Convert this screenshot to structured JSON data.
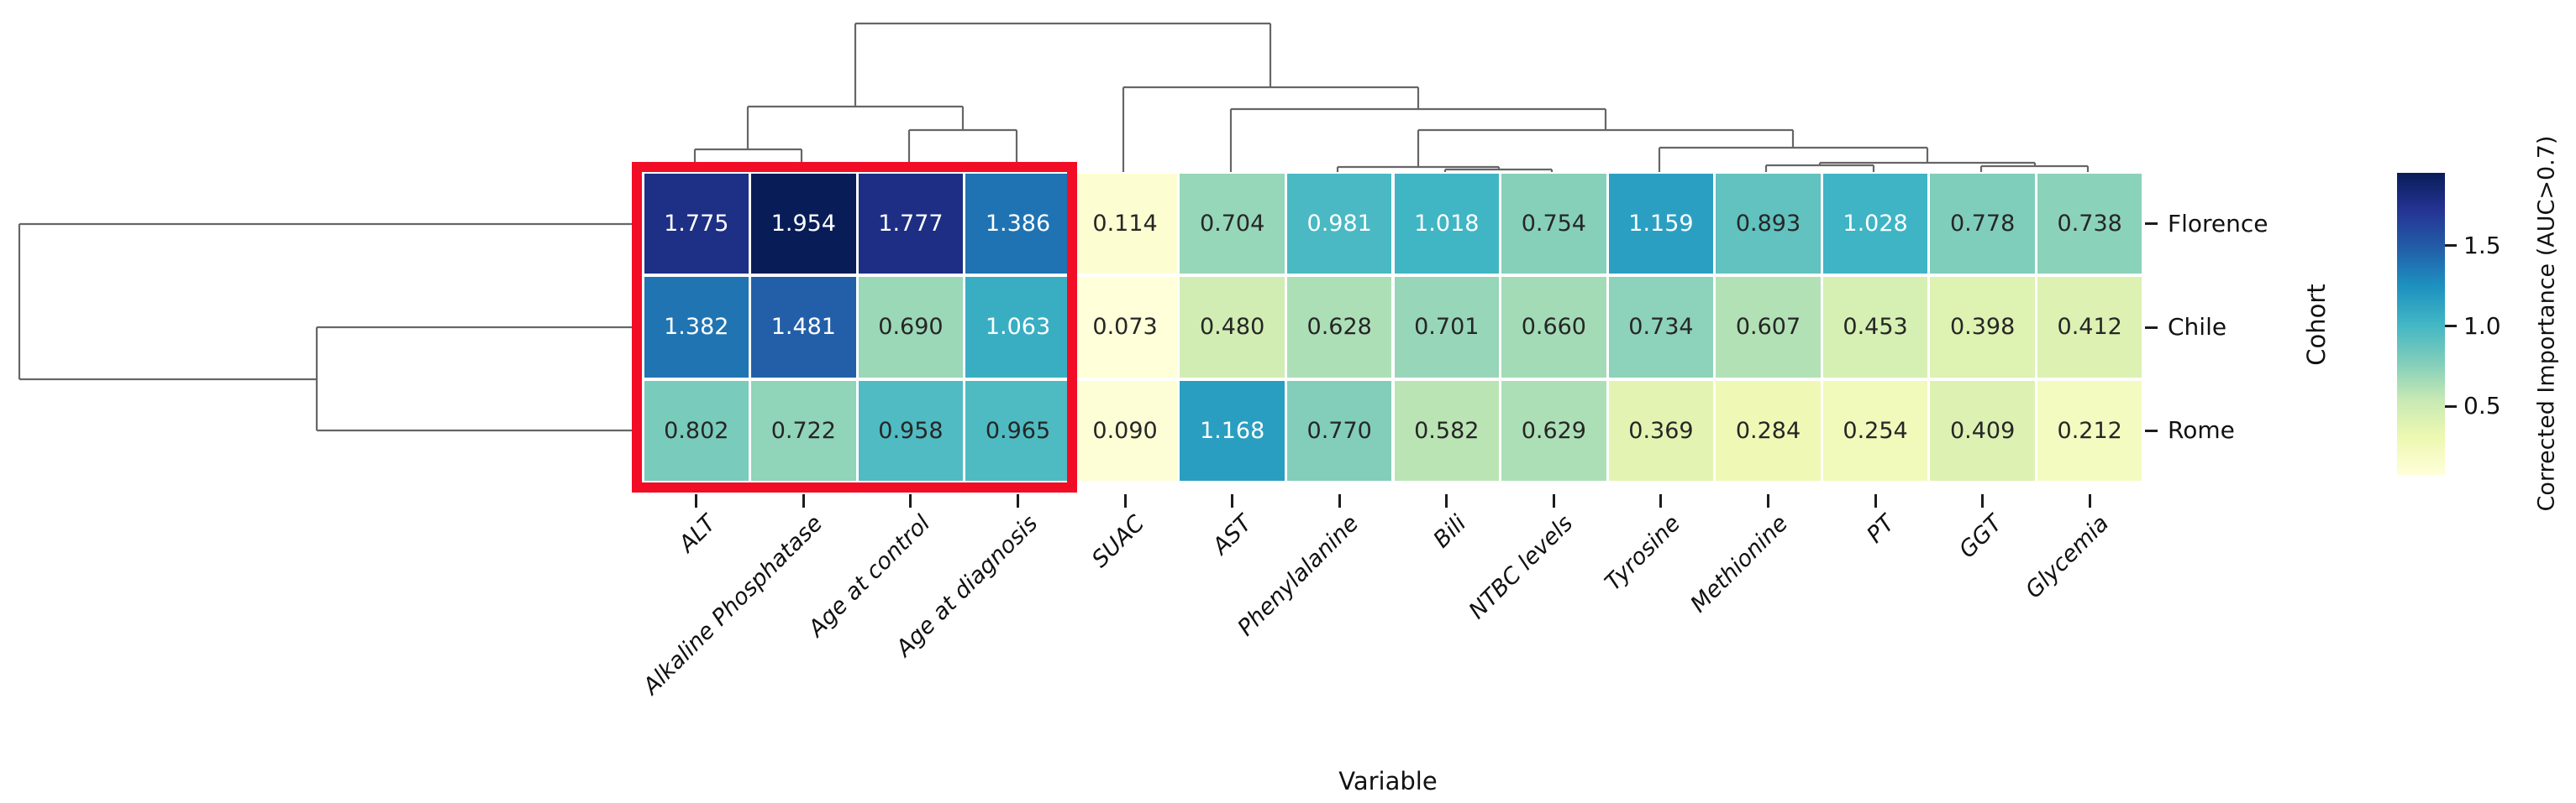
{
  "chart_data": {
    "type": "heatmap",
    "subtype": "clustermap-with-dendrograms",
    "rows": [
      "Florence",
      "Chile",
      "Rome"
    ],
    "columns": [
      "ALT",
      "Alkaline Phosphatase",
      "Age at control",
      "Age at diagnosis",
      "SUAC",
      "AST",
      "Phenylalanine",
      "Bili",
      "NTBC levels",
      "Tyrosine",
      "Methionine",
      "PT",
      "GGT",
      "Glycemia"
    ],
    "values": [
      [
        1.775,
        1.954,
        1.777,
        1.386,
        0.114,
        0.704,
        0.981,
        1.018,
        0.754,
        1.159,
        0.893,
        1.028,
        0.778,
        0.738
      ],
      [
        1.382,
        1.481,
        0.69,
        1.063,
        0.073,
        0.48,
        0.628,
        0.701,
        0.66,
        0.734,
        0.607,
        0.453,
        0.398,
        0.412
      ],
      [
        0.802,
        0.722,
        0.958,
        0.965,
        0.09,
        1.168,
        0.77,
        0.582,
        0.629,
        0.369,
        0.284,
        0.254,
        0.409,
        0.212
      ]
    ],
    "value_decimals": 3,
    "xlabel": "Variable",
    "row_axis_label": "Cohort",
    "grid": false,
    "legend_position": "right",
    "colorbar": {
      "label": "Corrected Importance (AUC>0.7)",
      "tick_labels": [
        "1.5",
        "1.0",
        "0.5"
      ],
      "tick_values": [
        1.5,
        1.0,
        0.5
      ],
      "vmin": 0.073,
      "vmax": 1.954
    },
    "colormap": {
      "name": "YlGnBu",
      "stops": [
        "#ffffd9",
        "#edf8b1",
        "#c7e9b4",
        "#7fcdbb",
        "#41b6c4",
        "#1d91c0",
        "#225ea8",
        "#253494",
        "#081d58"
      ]
    },
    "annotation_text_colors": {
      "dark": "#262626",
      "light": "#ffffff"
    },
    "highlight": {
      "columns": [
        "ALT",
        "Alkaline Phosphatase",
        "Age at control",
        "Age at diagnosis"
      ],
      "color": "#f20d26"
    },
    "dendrogram_color": "#666666",
    "column_dendrogram_segments": [
      [
        827,
        205,
        827,
        178
      ],
      [
        954,
        205,
        954,
        178
      ],
      [
        827,
        178,
        954,
        178
      ],
      [
        1082,
        205,
        1082,
        155
      ],
      [
        1210,
        205,
        1210,
        155
      ],
      [
        1082,
        155,
        1210,
        155
      ],
      [
        890,
        178,
        890,
        127
      ],
      [
        1146,
        155,
        1146,
        127
      ],
      [
        890,
        127,
        1146,
        127
      ],
      [
        1720,
        205,
        1720,
        202
      ],
      [
        1847,
        205,
        1847,
        202
      ],
      [
        1720,
        202,
        1847,
        202
      ],
      [
        1592,
        205,
        1592,
        199
      ],
      [
        1784,
        202,
        1784,
        199
      ],
      [
        1592,
        199,
        1784,
        199
      ],
      [
        2102,
        205,
        2102,
        197
      ],
      [
        2230,
        205,
        2230,
        197
      ],
      [
        2102,
        197,
        2230,
        197
      ],
      [
        2358,
        205,
        2358,
        198
      ],
      [
        2485,
        205,
        2485,
        198
      ],
      [
        2358,
        198,
        2485,
        198
      ],
      [
        2166,
        197,
        2166,
        194
      ],
      [
        2422,
        198,
        2422,
        194
      ],
      [
        2166,
        194,
        2422,
        194
      ],
      [
        1975,
        205,
        1975,
        176
      ],
      [
        2294,
        194,
        2294,
        176
      ],
      [
        1975,
        176,
        2294,
        176
      ],
      [
        1688,
        199,
        1688,
        155
      ],
      [
        2134,
        176,
        2134,
        155
      ],
      [
        1688,
        155,
        2134,
        155
      ],
      [
        1465,
        205,
        1465,
        130
      ],
      [
        1911,
        155,
        1911,
        130
      ],
      [
        1465,
        130,
        1911,
        130
      ],
      [
        1337,
        205,
        1337,
        104
      ],
      [
        1688,
        130,
        1688,
        104
      ],
      [
        1337,
        104,
        1688,
        104
      ],
      [
        1018,
        127,
        1018,
        28
      ],
      [
        1512,
        104,
        1512,
        28
      ],
      [
        1018,
        28,
        1512,
        28
      ]
    ],
    "row_dendrogram_segments": [
      [
        755,
        267,
        23,
        267
      ],
      [
        23,
        267,
        23,
        452
      ],
      [
        23,
        452,
        377,
        452
      ],
      [
        377,
        390,
        377,
        513
      ],
      [
        755,
        390,
        377,
        390
      ],
      [
        755,
        513,
        377,
        513
      ]
    ]
  }
}
